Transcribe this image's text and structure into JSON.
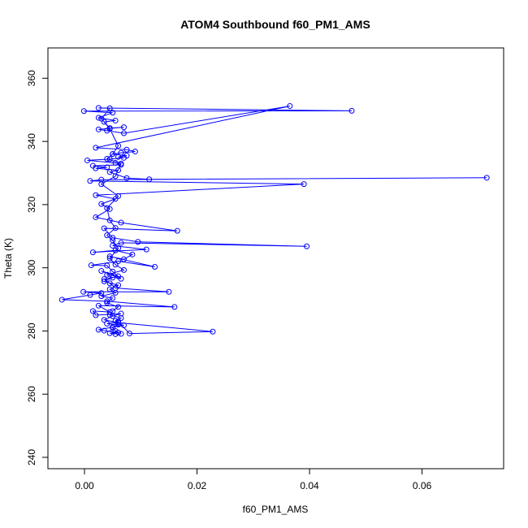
{
  "chart_data": {
    "type": "scatter",
    "title": "ATOM4 Southbound f60_PM1_AMS",
    "xlabel": "f60_PM1_AMS",
    "ylabel": "Theta (K)",
    "xlim": [
      -0.0065,
      0.0745
    ],
    "ylim": [
      236.4,
      369.6
    ],
    "x_ticks": [
      0.0,
      0.02,
      0.04,
      0.06
    ],
    "x_tick_labels": [
      "0.00",
      "0.02",
      "0.04",
      "0.06"
    ],
    "y_ticks": [
      240,
      260,
      280,
      300,
      320,
      340,
      360
    ],
    "y_tick_labels": [
      "240",
      "260",
      "280",
      "300",
      "320",
      "340",
      "360"
    ],
    "grid": false,
    "series": [
      {
        "name": "f60_PM1_AMS",
        "color": "#0000ff",
        "marker": "open-circle",
        "connect_lines": true,
        "points": [
          [
            0.0055,
            279.0
          ],
          [
            0.0045,
            279.3
          ],
          [
            0.006,
            279.5
          ],
          [
            0.0035,
            280.1
          ],
          [
            0.0025,
            280.4
          ],
          [
            0.005,
            281.2
          ],
          [
            0.007,
            281.8
          ],
          [
            0.004,
            282.3
          ],
          [
            0.006,
            283.0
          ],
          [
            0.008,
            279.2
          ],
          [
            0.0228,
            279.8
          ],
          [
            0.006,
            282.6
          ],
          [
            0.0035,
            283.5
          ],
          [
            0.005,
            284.7
          ],
          [
            0.0065,
            285.5
          ],
          [
            0.002,
            285.0
          ],
          [
            0.0015,
            286.3
          ],
          [
            0.0045,
            286.0
          ],
          [
            0.0025,
            288.0
          ],
          [
            0.016,
            287.6
          ],
          [
            0.004,
            289.4
          ],
          [
            -0.004,
            289.9
          ],
          [
            0.001,
            291.4
          ],
          [
            0.003,
            292.0
          ],
          [
            -0.0002,
            292.4
          ],
          [
            0.015,
            292.4
          ],
          [
            0.0055,
            293.6
          ],
          [
            0.0045,
            295.1
          ],
          [
            0.0035,
            296.4
          ],
          [
            0.006,
            297.3
          ],
          [
            0.003,
            299.0
          ],
          [
            0.0065,
            296.5
          ],
          [
            0.005,
            298.8
          ],
          [
            0.004,
            300.7
          ],
          [
            0.0012,
            300.8
          ],
          [
            0.006,
            302.1
          ],
          [
            0.0125,
            300.3
          ],
          [
            0.0045,
            303.6
          ],
          [
            0.007,
            302.7
          ],
          [
            0.0085,
            304.2
          ],
          [
            0.0055,
            305.5
          ],
          [
            0.0015,
            304.9
          ],
          [
            0.011,
            305.8
          ],
          [
            0.005,
            307.0
          ],
          [
            0.0065,
            307.9
          ],
          [
            0.0395,
            306.8
          ],
          [
            0.0095,
            308.2
          ],
          [
            0.005,
            309.5
          ],
          [
            0.0035,
            312.5
          ],
          [
            0.0165,
            311.7
          ],
          [
            0.0065,
            314.3
          ],
          [
            0.002,
            316.0
          ],
          [
            0.0045,
            318.6
          ],
          [
            0.003,
            320.2
          ],
          [
            0.0055,
            321.8
          ],
          [
            0.002,
            323.0
          ],
          [
            0.039,
            326.5
          ],
          [
            0.001,
            327.5
          ],
          [
            0.003,
            327.9
          ],
          [
            0.0715,
            328.5
          ],
          [
            0.0115,
            328.0
          ],
          [
            0.0075,
            328.4
          ],
          [
            0.0045,
            330.3
          ],
          [
            0.006,
            330.9
          ],
          [
            0.002,
            331.5
          ],
          [
            0.004,
            331.8
          ],
          [
            0.0015,
            332.3
          ],
          [
            0.0065,
            332.6
          ],
          [
            0.0055,
            333.2
          ],
          [
            0.0005,
            334.0
          ],
          [
            0.0045,
            334.4
          ],
          [
            0.007,
            334.8
          ],
          [
            0.006,
            335.1
          ],
          [
            0.0075,
            335.5
          ],
          [
            0.005,
            336.0
          ],
          [
            0.0065,
            336.4
          ],
          [
            0.009,
            336.8
          ],
          [
            0.0075,
            337.4
          ],
          [
            0.002,
            338.0
          ],
          [
            0.0365,
            351.2
          ],
          [
            0.007,
            342.6
          ],
          [
            0.004,
            343.4
          ],
          [
            0.0025,
            343.8
          ],
          [
            0.007,
            344.5
          ],
          [
            0.0045,
            344.2
          ],
          [
            0.0035,
            346.2
          ],
          [
            0.0055,
            346.6
          ],
          [
            0.0025,
            347.5
          ],
          [
            0.005,
            349.1
          ],
          [
            -0.0001,
            349.6
          ],
          [
            0.0475,
            349.7
          ],
          [
            0.0025,
            350.6
          ],
          [
            0.0045,
            350.5
          ],
          [
            0.003,
            347.2
          ],
          [
            0.0045,
            344.0
          ],
          [
            0.006,
            338.6
          ],
          [
            0.005,
            336.0
          ],
          [
            0.004,
            334.5
          ],
          [
            0.0065,
            333.0
          ],
          [
            0.0055,
            329.0
          ],
          [
            0.003,
            326.5
          ],
          [
            0.006,
            322.7
          ],
          [
            0.004,
            318.9
          ],
          [
            0.0045,
            315.0
          ],
          [
            0.0055,
            312.6
          ],
          [
            0.004,
            310.3
          ],
          [
            0.005,
            308.7
          ],
          [
            0.006,
            306.2
          ],
          [
            0.0045,
            303.0
          ],
          [
            0.0055,
            301.0
          ],
          [
            0.007,
            299.3
          ],
          [
            0.004,
            297.8
          ],
          [
            0.005,
            296.9
          ],
          [
            0.0035,
            295.7
          ],
          [
            0.006,
            294.5
          ],
          [
            0.0045,
            293.2
          ],
          [
            0.0055,
            292.1
          ],
          [
            0.003,
            291.0
          ],
          [
            0.005,
            290.4
          ],
          [
            0.004,
            288.9
          ],
          [
            0.006,
            287.6
          ],
          [
            0.005,
            286.3
          ],
          [
            0.0045,
            285.1
          ],
          [
            0.0065,
            284.1
          ],
          [
            0.0055,
            283.2
          ],
          [
            0.006,
            282.0
          ],
          [
            0.005,
            281.0
          ],
          [
            0.0055,
            280.0
          ],
          [
            0.0065,
            279.1
          ]
        ]
      }
    ]
  }
}
